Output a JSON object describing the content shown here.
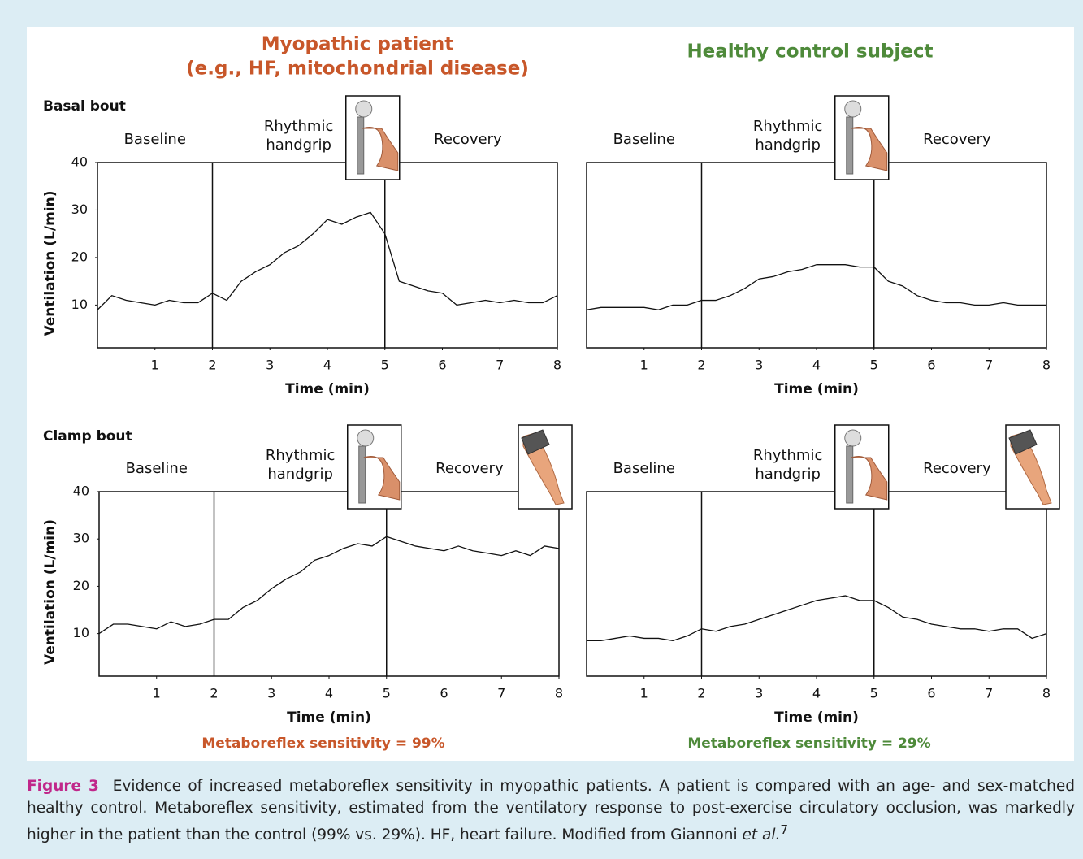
{
  "figure": {
    "column_titles": [
      {
        "lines": [
          "Myopathic patient",
          "(e.g., HF, mitochondrial disease)"
        ],
        "color": "#c8572a"
      },
      {
        "lines": [
          "Healthy control subject"
        ],
        "color": "#4e8a3a"
      }
    ],
    "row_labels": [
      "Basal bout",
      "Clamp bout"
    ],
    "sensitivities": [
      {
        "text": "Metaboreflex sensitivity = 99%",
        "color": "#c8572a"
      },
      {
        "text": "Metaboreflex sensitivity = 29%",
        "color": "#4e8a3a"
      }
    ]
  },
  "caption": {
    "label": "Figure 3",
    "text": "Evidence of increased metaboreflex sensitivity in myopathic patients. A patient is compared with an age- and sex-matched healthy control. Metaboreflex sensitivity, estimated from the ventilatory response to post-exercise circulatory occlusion, was markedly higher in the patient than the control (99% vs. 29%). HF, heart failure. Modified from Giannoni",
    "italic": "et al.",
    "ref": "7"
  },
  "chart_data": [
    {
      "type": "line",
      "ylabel": "Ventilation (L/min)",
      "xlabel": "Time (min)",
      "phase_labels": [
        [
          "Baseline"
        ],
        [
          "Rhythmic",
          "handgrip"
        ],
        [
          "Recovery"
        ]
      ],
      "phase_bounds": [
        2,
        5
      ],
      "xlim": [
        0,
        8
      ],
      "xticks": [
        1,
        2,
        3,
        4,
        5,
        6,
        7,
        8
      ],
      "ylim": [
        1,
        40
      ],
      "yticks": [
        10,
        20,
        30,
        40
      ],
      "x": [
        0,
        0.25,
        0.5,
        0.75,
        1,
        1.25,
        1.5,
        1.75,
        2,
        2.25,
        2.5,
        2.75,
        3,
        3.25,
        3.5,
        3.75,
        4,
        4.25,
        4.5,
        4.75,
        5,
        5.25,
        5.5,
        5.75,
        6,
        6.25,
        6.5,
        6.75,
        7,
        7.25,
        7.5,
        7.75,
        8
      ],
      "series": [
        {
          "color": "#111111",
          "values": [
            9,
            12,
            11,
            10.5,
            10,
            11,
            10.5,
            10.5,
            12.5,
            11,
            15,
            17,
            18.5,
            21,
            22.5,
            25,
            28,
            27,
            28.5,
            29.5,
            25,
            15,
            14,
            13,
            12.5,
            10,
            10.5,
            11,
            10.5,
            11,
            10.5,
            10.5,
            12
          ]
        }
      ]
    },
    {
      "type": "line",
      "xlabel": "Time (min)",
      "phase_labels": [
        [
          "Baseline"
        ],
        [
          "Rhythmic",
          "handgrip"
        ],
        [
          "Recovery"
        ]
      ],
      "phase_bounds": [
        2,
        5
      ],
      "xlim": [
        0,
        8
      ],
      "xticks": [
        1,
        2,
        3,
        4,
        5,
        6,
        7,
        8
      ],
      "ylim": [
        1,
        40
      ],
      "x": [
        0,
        0.25,
        0.5,
        0.75,
        1,
        1.25,
        1.5,
        1.75,
        2,
        2.25,
        2.5,
        2.75,
        3,
        3.25,
        3.5,
        3.75,
        4,
        4.25,
        4.5,
        4.75,
        5,
        5.25,
        5.5,
        5.75,
        6,
        6.25,
        6.5,
        6.75,
        7,
        7.25,
        7.5,
        7.75,
        8
      ],
      "series": [
        {
          "color": "#111111",
          "values": [
            9,
            9.5,
            9.5,
            9.5,
            9.5,
            9,
            10,
            10,
            11,
            11,
            12,
            13.5,
            15.5,
            16,
            17,
            17.5,
            18.5,
            18.5,
            18.5,
            18,
            18,
            15,
            14,
            12,
            11,
            10.5,
            10.5,
            10,
            10,
            10.5,
            10,
            10,
            10
          ]
        }
      ]
    },
    {
      "type": "line",
      "ylabel": "Ventilation (L/min)",
      "xlabel": "Time (min)",
      "phase_labels": [
        [
          "Baseline"
        ],
        [
          "Rhythmic",
          "handgrip"
        ],
        [
          "Recovery"
        ]
      ],
      "phase_bounds": [
        2,
        5
      ],
      "xlim": [
        0,
        8
      ],
      "xticks": [
        1,
        2,
        3,
        4,
        5,
        6,
        7,
        8
      ],
      "ylim": [
        1,
        40
      ],
      "yticks": [
        10,
        20,
        30,
        40
      ],
      "x": [
        0,
        0.25,
        0.5,
        0.75,
        1,
        1.25,
        1.5,
        1.75,
        2,
        2.25,
        2.5,
        2.75,
        3,
        3.25,
        3.5,
        3.75,
        4,
        4.25,
        4.5,
        4.75,
        5,
        5.25,
        5.5,
        5.75,
        6,
        6.25,
        6.5,
        6.75,
        7,
        7.25,
        7.5,
        7.75,
        8
      ],
      "series": [
        {
          "color": "#111111",
          "values": [
            10,
            12,
            12,
            11.5,
            11,
            12.5,
            11.5,
            12,
            13,
            13,
            15.5,
            17,
            19.5,
            21.5,
            23,
            25.5,
            26.5,
            28,
            29,
            28.5,
            30.5,
            29.5,
            28.5,
            28,
            27.5,
            28.5,
            27.5,
            27,
            26.5,
            27.5,
            26.5,
            28.5,
            28
          ]
        }
      ]
    },
    {
      "type": "line",
      "xlabel": "Time (min)",
      "phase_labels": [
        [
          "Baseline"
        ],
        [
          "Rhythmic",
          "handgrip"
        ],
        [
          "Recovery"
        ]
      ],
      "phase_bounds": [
        2,
        5
      ],
      "xlim": [
        0,
        8
      ],
      "xticks": [
        1,
        2,
        3,
        4,
        5,
        6,
        7,
        8
      ],
      "ylim": [
        1,
        40
      ],
      "x": [
        0,
        0.25,
        0.5,
        0.75,
        1,
        1.25,
        1.5,
        1.75,
        2,
        2.25,
        2.5,
        2.75,
        3,
        3.25,
        3.5,
        3.75,
        4,
        4.25,
        4.5,
        4.75,
        5,
        5.25,
        5.5,
        5.75,
        6,
        6.25,
        6.5,
        6.75,
        7,
        7.25,
        7.5,
        7.75,
        8
      ],
      "series": [
        {
          "color": "#111111",
          "values": [
            8.5,
            8.5,
            9,
            9.5,
            9,
            9,
            8.5,
            9.5,
            11,
            10.5,
            11.5,
            12,
            13,
            14,
            15,
            16,
            17,
            17.5,
            18,
            17,
            17,
            15.5,
            13.5,
            13,
            12,
            11.5,
            11,
            11,
            10.5,
            11,
            11,
            9,
            10
          ]
        }
      ]
    }
  ]
}
